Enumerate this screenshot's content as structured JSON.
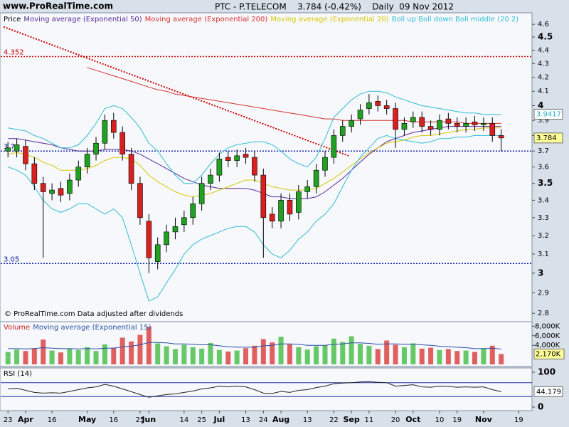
{
  "header": {
    "site": "www.ProRealTime.com",
    "title": "PTC - P.TELECOM    3.784 (-0.42%)    Daily  09 Nov 2012"
  },
  "chart_data": [
    {
      "type": "candlestick",
      "legend_label": "Price",
      "note": "© ProRealTime.com  Data adjusted after dividends",
      "categories": [
        "23",
        null,
        "Apr",
        null,
        null,
        "16",
        null,
        null,
        null,
        "May",
        null,
        null,
        "16",
        null,
        null,
        "25",
        "Jun",
        null,
        null,
        null,
        "14",
        null,
        "25",
        null,
        "Jul",
        null,
        null,
        "13",
        null,
        "24",
        null,
        "Aug",
        null,
        null,
        "13",
        null,
        null,
        "22",
        null,
        "Sep",
        null,
        "11",
        null,
        null,
        "20",
        null,
        "Oct",
        null,
        null,
        "10",
        null,
        "19",
        null,
        null,
        "Nov",
        null,
        null,
        null,
        "19",
        null
      ],
      "open": [
        3.7,
        3.7,
        3.73,
        3.62,
        3.5,
        3.44,
        3.47,
        3.44,
        3.52,
        3.6,
        3.68,
        3.75,
        3.9,
        3.82,
        3.68,
        3.5,
        3.28,
        3.06,
        3.15,
        3.22,
        3.26,
        3.3,
        3.38,
        3.5,
        3.55,
        3.66,
        3.64,
        3.68,
        3.66,
        3.55,
        3.32,
        3.28,
        3.4,
        3.33,
        3.45,
        3.48,
        3.58,
        3.66,
        3.8,
        3.86,
        3.91,
        3.98,
        4.03,
        4.0,
        3.98,
        3.84,
        3.89,
        3.92,
        3.86,
        3.84,
        3.91,
        3.88,
        3.86,
        3.89,
        3.87,
        3.88,
        3.8,
        null,
        null,
        null
      ],
      "high": [
        3.76,
        3.78,
        3.77,
        3.66,
        3.54,
        3.5,
        3.51,
        3.56,
        3.64,
        3.72,
        3.79,
        3.94,
        3.95,
        3.86,
        3.72,
        3.54,
        3.32,
        3.19,
        3.26,
        3.3,
        3.34,
        3.42,
        3.54,
        3.59,
        3.69,
        3.7,
        3.71,
        3.72,
        3.7,
        3.59,
        3.36,
        3.44,
        3.44,
        3.49,
        3.52,
        3.62,
        3.7,
        3.84,
        3.9,
        3.94,
        4.01,
        4.08,
        4.07,
        4.04,
        4.02,
        3.92,
        3.96,
        3.96,
        3.9,
        3.94,
        3.95,
        3.92,
        3.92,
        3.93,
        3.92,
        3.92,
        3.84,
        null,
        null,
        null
      ],
      "low": [
        3.66,
        3.66,
        3.58,
        3.46,
        3.08,
        3.4,
        3.39,
        3.4,
        3.48,
        3.56,
        3.64,
        3.71,
        3.78,
        3.64,
        3.46,
        3.26,
        3.0,
        3.02,
        3.11,
        3.18,
        3.22,
        3.26,
        3.34,
        3.46,
        3.51,
        3.6,
        3.6,
        3.62,
        3.51,
        3.08,
        3.24,
        3.24,
        3.28,
        3.29,
        3.41,
        3.44,
        3.54,
        3.62,
        3.76,
        3.82,
        3.87,
        3.94,
        3.96,
        3.94,
        3.72,
        3.8,
        3.85,
        3.82,
        3.8,
        3.8,
        3.84,
        3.82,
        3.82,
        3.83,
        3.83,
        3.76,
        3.7,
        null,
        null,
        null
      ],
      "close": [
        3.72,
        3.74,
        3.62,
        3.5,
        3.45,
        3.46,
        3.43,
        3.52,
        3.6,
        3.68,
        3.75,
        3.9,
        3.82,
        3.68,
        3.5,
        3.3,
        3.08,
        3.15,
        3.22,
        3.25,
        3.3,
        3.38,
        3.5,
        3.55,
        3.65,
        3.64,
        3.67,
        3.66,
        3.55,
        3.3,
        3.28,
        3.4,
        3.32,
        3.45,
        3.48,
        3.58,
        3.66,
        3.8,
        3.86,
        3.9,
        3.97,
        4.02,
        4.0,
        3.98,
        3.84,
        3.88,
        3.92,
        3.86,
        3.84,
        3.9,
        3.88,
        3.86,
        3.88,
        3.87,
        3.88,
        3.8,
        3.784,
        null,
        null,
        null
      ],
      "up_color": "#22a022",
      "down_color": "#d82020",
      "series": [
        {
          "name": "Moving average (Exponential 50)",
          "color": "#5a2a9a",
          "values": [
            3.78,
            3.78,
            3.77,
            3.76,
            3.75,
            3.74,
            3.72,
            3.71,
            3.7,
            3.7,
            3.7,
            3.71,
            3.71,
            3.71,
            3.7,
            3.68,
            3.65,
            3.62,
            3.59,
            3.56,
            3.53,
            3.51,
            3.49,
            3.48,
            3.47,
            3.47,
            3.47,
            3.47,
            3.46,
            3.44,
            3.42,
            3.42,
            3.41,
            3.41,
            3.41,
            3.42,
            3.45,
            3.49,
            3.53,
            3.58,
            3.63,
            3.68,
            3.72,
            3.76,
            3.78,
            3.8,
            3.82,
            3.83,
            3.84,
            3.85,
            3.86,
            3.86,
            3.86,
            3.86,
            3.86,
            3.86,
            3.86,
            null,
            null,
            null
          ]
        },
        {
          "name": "Moving average (Exponential 200)",
          "color": "#d83030",
          "values": [
            null,
            null,
            null,
            null,
            null,
            null,
            null,
            null,
            null,
            4.27,
            4.25,
            4.23,
            4.21,
            4.19,
            4.17,
            4.15,
            4.13,
            4.11,
            4.1,
            4.08,
            4.07,
            4.06,
            4.05,
            4.04,
            4.03,
            4.02,
            4.01,
            4.0,
            3.99,
            3.98,
            3.97,
            3.96,
            3.95,
            3.94,
            3.93,
            3.92,
            3.91,
            3.91,
            3.9,
            3.9,
            3.9,
            3.9,
            3.9,
            3.9,
            3.9,
            3.9,
            3.89,
            3.89,
            3.89,
            3.89,
            3.89,
            3.89,
            3.88,
            3.88,
            3.88,
            3.88,
            3.88,
            null,
            null,
            null
          ]
        },
        {
          "name": "Moving average (Exponential 20)",
          "color": "#d8c800",
          "values": [
            3.68,
            3.69,
            3.68,
            3.66,
            3.63,
            3.61,
            3.58,
            3.58,
            3.58,
            3.59,
            3.61,
            3.64,
            3.66,
            3.66,
            3.65,
            3.61,
            3.55,
            3.51,
            3.48,
            3.45,
            3.43,
            3.42,
            3.43,
            3.44,
            3.46,
            3.48,
            3.5,
            3.52,
            3.52,
            3.5,
            3.48,
            3.47,
            3.46,
            3.46,
            3.46,
            3.47,
            3.5,
            3.53,
            3.57,
            3.61,
            3.65,
            3.69,
            3.72,
            3.75,
            3.76,
            3.77,
            3.79,
            3.8,
            3.8,
            3.81,
            3.82,
            3.83,
            3.84,
            3.84,
            3.85,
            3.85,
            3.85,
            null,
            null,
            null
          ]
        },
        {
          "name": "Boll up Boll down Boll middle (20 2)",
          "color": "#30bcd8",
          "upper": [
            3.85,
            3.84,
            3.83,
            3.8,
            3.78,
            3.75,
            3.72,
            3.72,
            3.74,
            3.8,
            3.88,
            3.98,
            4.0,
            3.98,
            3.92,
            3.85,
            3.75,
            3.7,
            3.62,
            3.55,
            3.5,
            3.5,
            3.55,
            3.62,
            3.68,
            3.72,
            3.74,
            3.75,
            3.76,
            3.76,
            3.74,
            3.7,
            3.65,
            3.62,
            3.6,
            3.66,
            3.78,
            3.92,
            3.98,
            4.04,
            4.08,
            4.1,
            4.1,
            4.09,
            4.06,
            4.04,
            4.02,
            4.0,
            3.99,
            3.98,
            3.97,
            3.96,
            3.95,
            3.95,
            3.94,
            3.94,
            3.94,
            null,
            null,
            null
          ],
          "lower": [
            3.6,
            3.58,
            3.55,
            3.48,
            3.4,
            3.35,
            3.33,
            3.35,
            3.38,
            3.38,
            3.35,
            3.32,
            3.35,
            3.3,
            3.15,
            3.0,
            2.86,
            2.88,
            2.95,
            3.02,
            3.1,
            3.15,
            3.18,
            3.2,
            3.22,
            3.24,
            3.25,
            3.25,
            3.22,
            3.15,
            3.1,
            3.08,
            3.12,
            3.18,
            3.22,
            3.28,
            3.32,
            3.38,
            3.48,
            3.58,
            3.66,
            3.72,
            3.78,
            3.8,
            3.78,
            3.77,
            3.76,
            3.75,
            3.76,
            3.78,
            3.78,
            3.79,
            3.79,
            3.8,
            3.8,
            3.8,
            3.8,
            null,
            null,
            null
          ]
        }
      ],
      "trendline": {
        "color": "#cc0000",
        "values": [
          4.58,
          3.67
        ]
      },
      "levels": [
        {
          "value": 4.352,
          "color": "#cc0000"
        },
        {
          "value": 3.7,
          "color": "#1020a0"
        },
        {
          "value": 3.05,
          "color": "#1020a0"
        }
      ],
      "price_labels": [
        {
          "value": 3.9417,
          "color": "#20a8c8",
          "background": "#ffffff"
        },
        {
          "value": 3.784,
          "color": "#000000",
          "background": "#ffff99"
        }
      ],
      "log_scale": true,
      "ylim": [
        2.76,
        4.68
      ],
      "yticks": [
        2.8,
        2.9,
        3,
        3.1,
        3.2,
        3.3,
        3.4,
        3.5,
        3.6,
        3.7,
        3.8,
        3.9,
        4,
        4.1,
        4.2,
        4.3,
        4.4,
        4.5,
        4.6
      ]
    },
    {
      "type": "bar",
      "title": "Volume",
      "values": [
        2600000,
        3100000,
        2800000,
        3400000,
        5200000,
        2900000,
        2500000,
        3300000,
        3000000,
        3600000,
        2800000,
        4200000,
        3500000,
        5600000,
        4800000,
        6200000,
        7900000,
        4400000,
        3800000,
        3200000,
        4100000,
        3600000,
        3300000,
        4500000,
        3000000,
        2700000,
        2900000,
        3400000,
        3900000,
        5300000,
        4600000,
        5800000,
        4200000,
        3600000,
        3100000,
        3800000,
        4000000,
        5400000,
        4700000,
        5900000,
        4300000,
        3900000,
        3200000,
        5000000,
        4100000,
        3600000,
        4400000,
        3300000,
        3500000,
        3000000,
        3200000,
        2800000,
        2900000,
        2600000,
        3400000,
        3900000,
        2170000,
        null,
        null,
        null
      ],
      "up_color": "#66c866",
      "down_color": "#e06060",
      "series": [
        {
          "name": "Moving average (Exponential 15)",
          "color": "#2850a8",
          "values": [
            3300000,
            3300000,
            3250000,
            3300000,
            3500000,
            3400000,
            3300000,
            3300000,
            3250000,
            3300000,
            3250000,
            3400000,
            3400000,
            3700000,
            3800000,
            4100000,
            4600000,
            4600000,
            4500000,
            4300000,
            4300000,
            4200000,
            4100000,
            4100000,
            3900000,
            3700000,
            3600000,
            3600000,
            3600000,
            3900000,
            4000000,
            4300000,
            4300000,
            4200000,
            4000000,
            4000000,
            4000000,
            4200000,
            4300000,
            4500000,
            4500000,
            4400000,
            4200000,
            4300000,
            4300000,
            4200000,
            4200000,
            4100000,
            4000000,
            3800000,
            3700000,
            3600000,
            3500000,
            3300000,
            3300000,
            3400000,
            3200000,
            null,
            null,
            null
          ]
        }
      ],
      "last": {
        "value": 2170000,
        "label": "2,170K"
      },
      "ylim": [
        0,
        8800000
      ],
      "yticks": [
        {
          "value": 4000000,
          "label": "4,000K"
        },
        {
          "value": 6000000,
          "label": "6,000K"
        },
        {
          "value": 8000000,
          "label": "8,000K"
        }
      ]
    },
    {
      "type": "line",
      "title": "RSI (14)",
      "color": "#222222",
      "values": [
        52,
        54,
        48,
        42,
        40,
        41,
        40,
        45,
        50,
        55,
        58,
        65,
        60,
        52,
        44,
        36,
        28,
        32,
        36,
        38,
        42,
        46,
        52,
        55,
        60,
        58,
        60,
        58,
        50,
        40,
        39,
        45,
        42,
        48,
        50,
        56,
        60,
        67,
        69,
        70,
        72,
        73,
        71,
        70,
        60,
        62,
        64,
        58,
        57,
        60,
        59,
        57,
        58,
        57,
        58,
        50,
        44.179,
        null,
        null,
        null
      ],
      "levels": [
        70,
        30
      ],
      "level_color": "#2030a0",
      "ylim": [
        0,
        100
      ],
      "yticks": [
        0,
        100
      ]
    }
  ]
}
